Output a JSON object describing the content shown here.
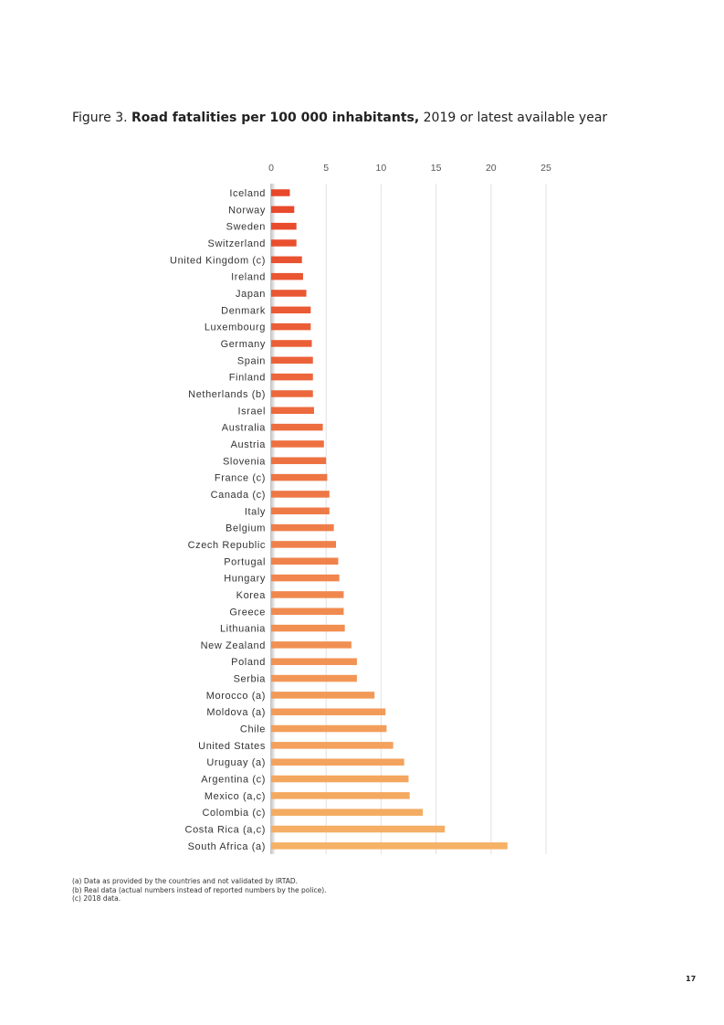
{
  "figure": {
    "prefix": "Figure 3.",
    "title_bold": "Road fatalities per 100 000 inhabitants,",
    "title_rest": "2019 or latest available year"
  },
  "chart_data": {
    "type": "bar",
    "orientation": "horizontal",
    "title": "Road fatalities per 100 000 inhabitants, 2019 or latest available year",
    "xlim": [
      0,
      25
    ],
    "xticks": [
      0,
      5,
      10,
      15,
      20,
      25
    ],
    "x_axis_position": "top",
    "grid": true,
    "categories": [
      "Iceland",
      "Norway",
      "Sweden",
      "Switzerland",
      "United Kingdom (c)",
      "Ireland",
      "Japan",
      "Denmark",
      "Luxembourg",
      "Germany",
      "Spain",
      "Finland",
      "Netherlands (b)",
      "Israel",
      "Australia",
      "Austria",
      "Slovenia",
      "France (c)",
      "Canada (c)",
      "Italy",
      "Belgium",
      "Czech Republic",
      "Portugal",
      "Hungary",
      "Korea",
      "Greece",
      "Lithuania",
      "New Zealand",
      "Poland",
      "Serbia",
      "Morocco (a)",
      "Moldova (a)",
      "Chile",
      "United States",
      "Uruguay (a)",
      "Argentina (c)",
      "Mexico (a,c)",
      "Colombia (c)",
      "Costa Rica (a,c)",
      "South Africa (a)"
    ],
    "values": [
      1.7,
      2.1,
      2.3,
      2.3,
      2.8,
      2.9,
      3.2,
      3.6,
      3.6,
      3.7,
      3.8,
      3.8,
      3.8,
      3.9,
      4.7,
      4.8,
      5.0,
      5.1,
      5.3,
      5.3,
      5.7,
      5.9,
      6.1,
      6.2,
      6.6,
      6.6,
      6.7,
      7.3,
      7.8,
      7.8,
      9.4,
      10.4,
      10.5,
      11.1,
      12.1,
      12.5,
      12.6,
      13.8,
      15.8,
      21.5
    ],
    "colors": {
      "start": "#E8472A",
      "end": "#F5B165"
    }
  },
  "notes": [
    "(a) Data as provided by the countries and not validated by IRTAD.",
    "(b) Real data (actual numbers instead of reported numbers by the police).",
    "(c) 2018 data."
  ],
  "page_number": "17"
}
